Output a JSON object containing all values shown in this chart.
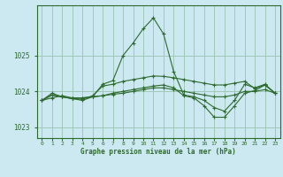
{
  "title": "Graphe pression niveau de la mer (hPa)",
  "bg_color": "#cce8f0",
  "line_color": "#2d6a2d",
  "grid_color": "#a0c8b8",
  "xlim": [
    -0.5,
    23.5
  ],
  "ylim": [
    1022.7,
    1026.4
  ],
  "yticks": [
    1023,
    1024,
    1025
  ],
  "xticks": [
    0,
    1,
    2,
    3,
    4,
    5,
    6,
    7,
    8,
    9,
    10,
    11,
    12,
    13,
    14,
    15,
    16,
    17,
    18,
    19,
    20,
    21,
    22,
    23
  ],
  "series": [
    [
      1023.75,
      1023.9,
      1023.85,
      1023.8,
      1023.75,
      1023.85,
      1024.2,
      1024.3,
      1025.0,
      1025.35,
      1025.75,
      1026.05,
      1025.6,
      1024.55,
      1023.9,
      1023.85,
      1023.75,
      1023.55,
      1023.45,
      1023.75,
      1024.2,
      1024.1,
      1024.2,
      1023.95
    ],
    [
      1023.75,
      1023.9,
      1023.85,
      1023.8,
      1023.82,
      1023.85,
      1023.88,
      1023.92,
      1023.95,
      1024.0,
      1024.05,
      1024.1,
      1024.1,
      1024.05,
      1024.0,
      1023.95,
      1023.9,
      1023.85,
      1023.85,
      1023.9,
      1024.0,
      1024.0,
      1024.05,
      1023.95
    ],
    [
      1023.75,
      1023.95,
      1023.85,
      1023.8,
      1023.78,
      1023.88,
      1024.15,
      1024.2,
      1024.28,
      1024.33,
      1024.38,
      1024.43,
      1024.42,
      1024.38,
      1024.33,
      1024.28,
      1024.23,
      1024.18,
      1024.18,
      1024.23,
      1024.28,
      1024.08,
      1024.18,
      1023.95
    ],
    [
      1023.75,
      1023.82,
      1023.88,
      1023.82,
      1023.82,
      1023.85,
      1023.88,
      1023.95,
      1024.0,
      1024.05,
      1024.1,
      1024.15,
      1024.18,
      1024.1,
      1023.88,
      1023.82,
      1023.6,
      1023.28,
      1023.28,
      1023.6,
      1023.95,
      1024.02,
      1024.18,
      1023.95
    ]
  ]
}
